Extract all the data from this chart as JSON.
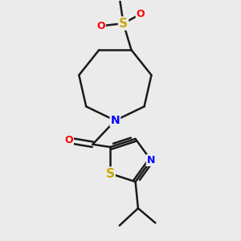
{
  "bg_color": "#ebebeb",
  "bond_color": "#1a1a1a",
  "bond_width": 1.8,
  "atom_colors": {
    "N": "#0000ff",
    "O": "#ff0000",
    "S": "#ccaa00",
    "C": "#1a1a1a"
  },
  "figsize": [
    3.0,
    3.0
  ],
  "dpi": 100
}
